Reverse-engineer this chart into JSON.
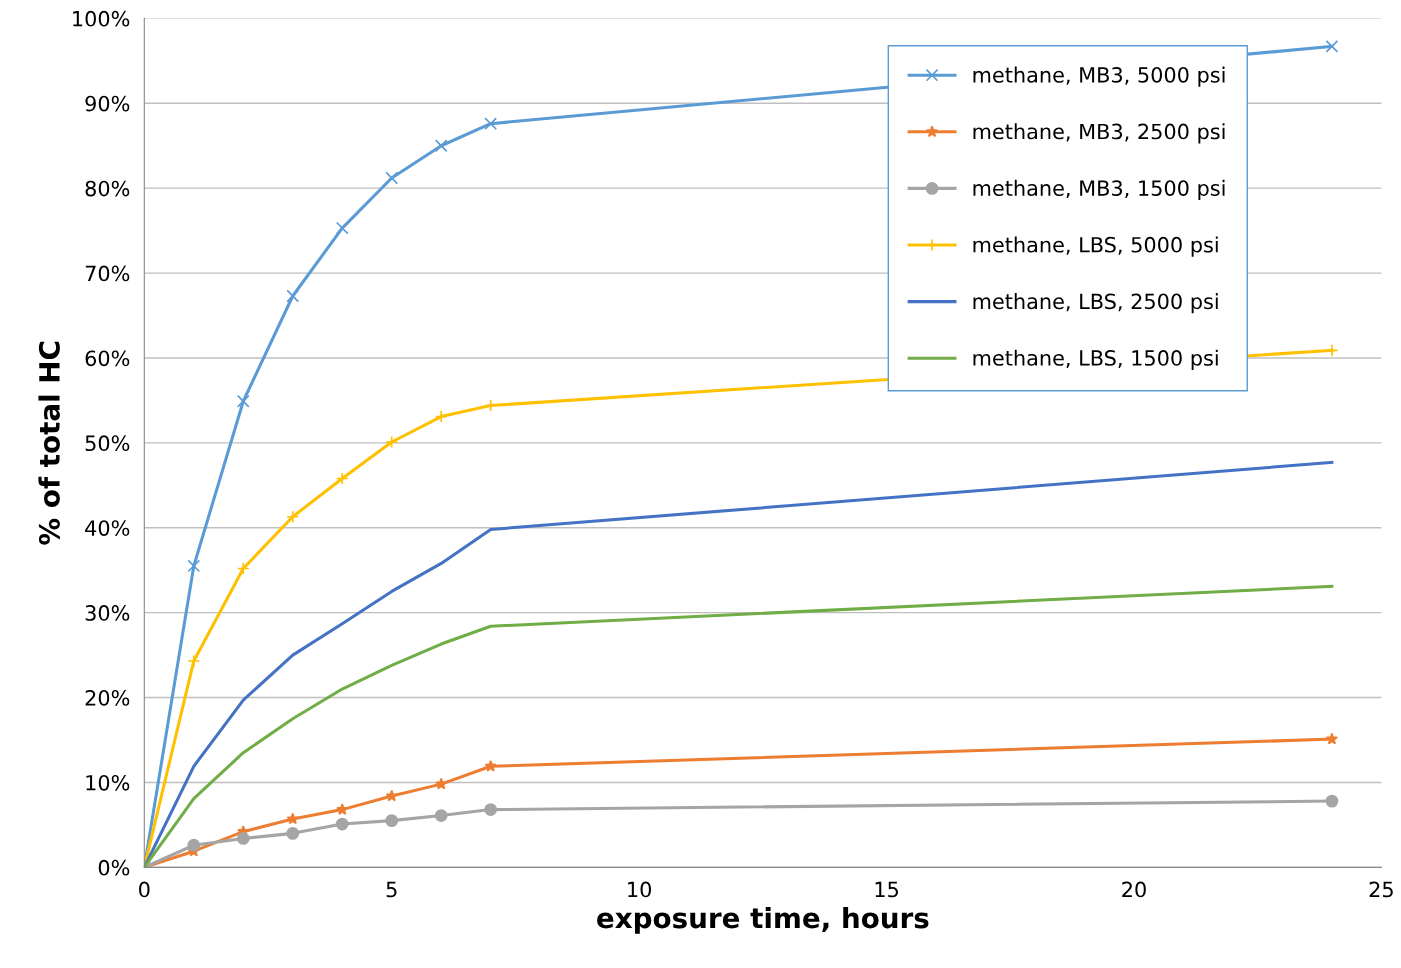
{
  "chart_data": {
    "type": "line",
    "xlabel": "exposure time, hours",
    "ylabel": "% of total HC",
    "x": [
      0,
      1,
      2,
      3,
      4,
      5,
      6,
      7,
      24
    ],
    "series": [
      {
        "name": "methane, MB3, 5000 psi",
        "color": "#5b9bd5",
        "marker": "cross",
        "values": [
          0,
          35.5,
          54.9,
          67.3,
          75.3,
          81.2,
          85.0,
          87.6,
          96.7
        ]
      },
      {
        "name": "methane, MB3, 2500 psi",
        "color": "#ed7d31",
        "marker": "star",
        "values": [
          0,
          1.9,
          4.2,
          5.7,
          6.8,
          8.4,
          9.8,
          11.9,
          15.1
        ]
      },
      {
        "name": "methane, MB3, 1500 psi",
        "color": "#a5a5a5",
        "marker": "circle",
        "values": [
          0,
          2.6,
          3.4,
          4.0,
          5.1,
          5.5,
          6.1,
          6.8,
          7.8
        ]
      },
      {
        "name": "methane, LBS, 5000 psi",
        "color": "#ffc000",
        "marker": "plus",
        "values": [
          0,
          24.3,
          35.2,
          41.3,
          45.8,
          50.1,
          53.1,
          54.4,
          60.9
        ]
      },
      {
        "name": "methane, LBS, 2500 psi",
        "color": "#4472c4",
        "marker": "none",
        "values": [
          0,
          11.9,
          19.7,
          25.0,
          28.7,
          32.5,
          35.8,
          39.8,
          47.7
        ]
      },
      {
        "name": "methane, LBS, 1500 psi",
        "color": "#70ad47",
        "marker": "none",
        "values": [
          0,
          8.1,
          13.5,
          17.5,
          21.0,
          23.8,
          26.3,
          28.4,
          33.1
        ]
      }
    ],
    "xlim": [
      0,
      25
    ],
    "xticks": [
      0,
      5,
      10,
      15,
      20,
      25
    ],
    "ylim": [
      0,
      100
    ],
    "yticks": [
      {
        "value": 0,
        "label": "0%"
      },
      {
        "value": 10,
        "label": "10%"
      },
      {
        "value": 20,
        "label": "20%"
      },
      {
        "value": 30,
        "label": "30%"
      },
      {
        "value": 40,
        "label": "40%"
      },
      {
        "value": 50,
        "label": "50%"
      },
      {
        "value": 60,
        "label": "60%"
      },
      {
        "value": 70,
        "label": "70%"
      },
      {
        "value": 80,
        "label": "80%"
      },
      {
        "value": 90,
        "label": "90%"
      },
      {
        "value": 100,
        "label": "100%"
      }
    ],
    "grid": "y",
    "legend": "top right",
    "line_style": "solid"
  }
}
